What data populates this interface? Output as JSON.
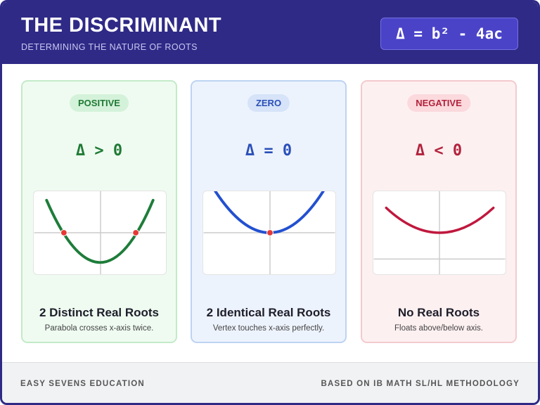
{
  "header": {
    "title": "THE DISCRIMINANT",
    "subtitle": "DETERMINING THE NATURE OF ROOTS",
    "formula": "Δ = b² - 4ac"
  },
  "cards": [
    {
      "badge": "POSITIVE",
      "expression": "Δ > 0",
      "title": "2 Distinct Real Roots",
      "description": "Parabola crosses x-axis twice."
    },
    {
      "badge": "ZERO",
      "expression": "Δ = 0",
      "title": "2 Identical Real Roots",
      "description": "Vertex touches x-axis perfectly."
    },
    {
      "badge": "NEGATIVE",
      "expression": "Δ < 0",
      "title": "No Real Roots",
      "description": "Floats above/below axis."
    }
  ],
  "footer": {
    "left": "EASY SEVENS EDUCATION",
    "right": "BASED ON IB MATH SL/HL METHODOLOGY"
  }
}
